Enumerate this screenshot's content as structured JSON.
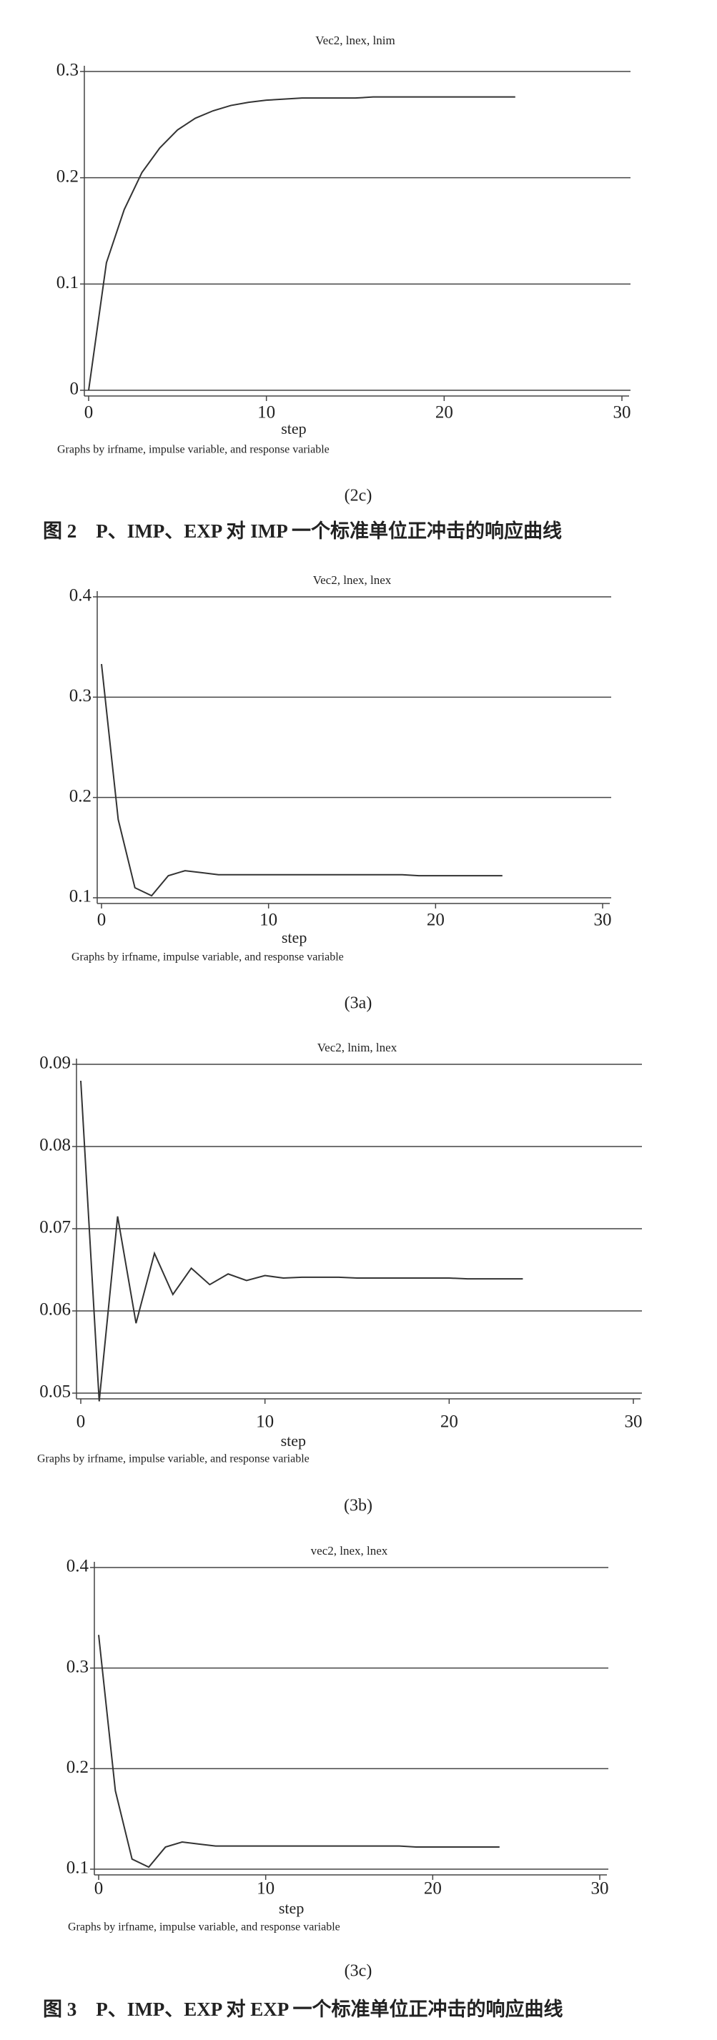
{
  "chart_data": [
    {
      "type": "line",
      "title": "Vec2, lnex, lnim",
      "x_label": "step",
      "note": "Graphs by irfname, impulse variable, and response variable",
      "caption": "(2c)",
      "x": [
        0,
        1,
        2,
        3,
        4,
        5,
        6,
        7,
        8,
        9,
        10,
        11,
        12,
        13,
        14,
        15,
        16,
        17,
        18,
        19,
        20,
        21,
        22,
        23,
        24
      ],
      "values": [
        0,
        0.12,
        0.17,
        0.205,
        0.228,
        0.245,
        0.256,
        0.263,
        0.268,
        0.271,
        0.273,
        0.274,
        0.275,
        0.275,
        0.275,
        0.275,
        0.276,
        0.276,
        0.276,
        0.276,
        0.276,
        0.276,
        0.276,
        0.276,
        0.276
      ],
      "color": "#333333",
      "xlim": [
        0,
        30
      ],
      "xticks": [
        0,
        10,
        20,
        30
      ],
      "ylim": [
        0,
        0.3
      ],
      "yticks": [
        0,
        0.1,
        0.2,
        0.3
      ],
      "grid": true
    },
    {
      "type": "line",
      "title": "Vec2, lnex, lnex",
      "x_label": "step",
      "note": "Graphs by irfname, impulse variable, and response variable",
      "caption": "(3a)",
      "x": [
        0,
        1,
        2,
        3,
        4,
        5,
        6,
        7,
        8,
        9,
        10,
        11,
        12,
        13,
        14,
        15,
        16,
        17,
        18,
        19,
        20,
        21,
        22,
        23,
        24
      ],
      "values": [
        0.333,
        0.178,
        0.11,
        0.102,
        0.122,
        0.127,
        0.125,
        0.123,
        0.123,
        0.123,
        0.123,
        0.123,
        0.123,
        0.123,
        0.123,
        0.123,
        0.123,
        0.123,
        0.123,
        0.122,
        0.122,
        0.122,
        0.122,
        0.122,
        0.122
      ],
      "color": "#333333",
      "xlim": [
        0,
        30
      ],
      "xticks": [
        0,
        10,
        20,
        30
      ],
      "ylim": [
        0.1,
        0.4
      ],
      "yticks": [
        0.1,
        0.2,
        0.3,
        0.4
      ],
      "grid": true
    },
    {
      "type": "line",
      "title": "Vec2, lnim, lnex",
      "x_label": "step",
      "note": "Graphs by irfname, impulse variable, and response variable",
      "caption": "(3b)",
      "x": [
        0,
        1,
        2,
        3,
        4,
        5,
        6,
        7,
        8,
        9,
        10,
        11,
        12,
        13,
        14,
        15,
        16,
        17,
        18,
        19,
        20,
        21,
        22,
        23,
        24
      ],
      "values": [
        0.088,
        0.049,
        0.0715,
        0.0585,
        0.067,
        0.062,
        0.0652,
        0.0632,
        0.0645,
        0.0637,
        0.0643,
        0.064,
        0.0641,
        0.0641,
        0.0641,
        0.064,
        0.064,
        0.064,
        0.064,
        0.064,
        0.064,
        0.0639,
        0.0639,
        0.0639,
        0.0639
      ],
      "color": "#333333",
      "xlim": [
        0,
        30
      ],
      "xticks": [
        0,
        10,
        20,
        30
      ],
      "ylim": [
        0.05,
        0.09
      ],
      "yticks": [
        0.05,
        0.06,
        0.07,
        0.08,
        0.09
      ],
      "grid": true
    },
    {
      "type": "line",
      "title": "vec2, lnex, lnex",
      "x_label": "step",
      "note": "Graphs by irfname, impulse variable, and response variable",
      "caption": "(3c)",
      "x": [
        0,
        1,
        2,
        3,
        4,
        5,
        6,
        7,
        8,
        9,
        10,
        11,
        12,
        13,
        14,
        15,
        16,
        17,
        18,
        19,
        20,
        21,
        22,
        23,
        24
      ],
      "values": [
        0.333,
        0.178,
        0.11,
        0.102,
        0.122,
        0.127,
        0.125,
        0.123,
        0.123,
        0.123,
        0.123,
        0.123,
        0.123,
        0.123,
        0.123,
        0.123,
        0.123,
        0.123,
        0.123,
        0.122,
        0.122,
        0.122,
        0.122,
        0.122,
        0.122
      ],
      "color": "#333333",
      "xlim": [
        0,
        30
      ],
      "xticks": [
        0,
        10,
        20,
        30
      ],
      "ylim": [
        0.1,
        0.4
      ],
      "yticks": [
        0.1,
        0.2,
        0.3,
        0.4
      ],
      "grid": true
    }
  ],
  "figure_captions": [
    "图 2　P、IMP、EXP 对 IMP 一个标准单位正冲击的响应曲线",
    "图 3　P、IMP、EXP 对 EXP 一个标准单位正冲击的响应曲线"
  ]
}
